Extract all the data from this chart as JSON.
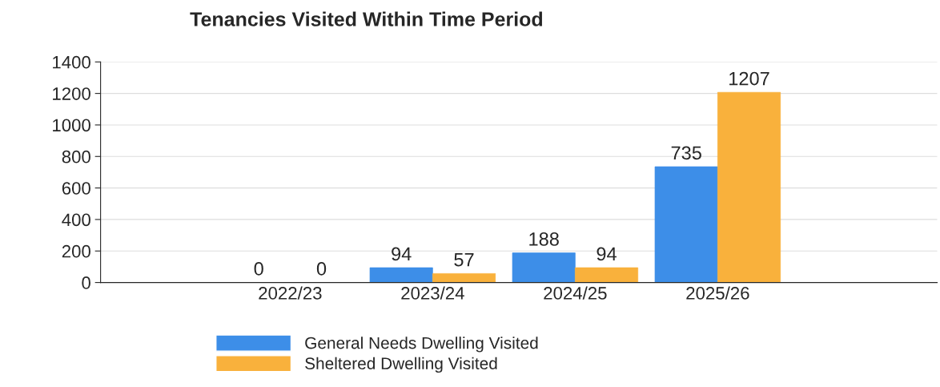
{
  "chart_data": {
    "type": "bar",
    "title": "Tenancies Visited Within Time Period",
    "categories": [
      "2022/23",
      "2023/24",
      "2024/25",
      "2025/26"
    ],
    "series": [
      {
        "name": "General Needs Dwelling Visited",
        "color": "#3d8ee8",
        "values": [
          0,
          94,
          188,
          735
        ]
      },
      {
        "name": "Sheltered Dwelling Visited",
        "color": "#f9b13c",
        "values": [
          0,
          57,
          94,
          1207
        ]
      }
    ],
    "ylim": [
      0,
      1400
    ],
    "yticks": [
      0,
      200,
      400,
      600,
      800,
      1000,
      1200,
      1400
    ],
    "grid": "y",
    "legend": "bottom",
    "data_labels": true
  }
}
